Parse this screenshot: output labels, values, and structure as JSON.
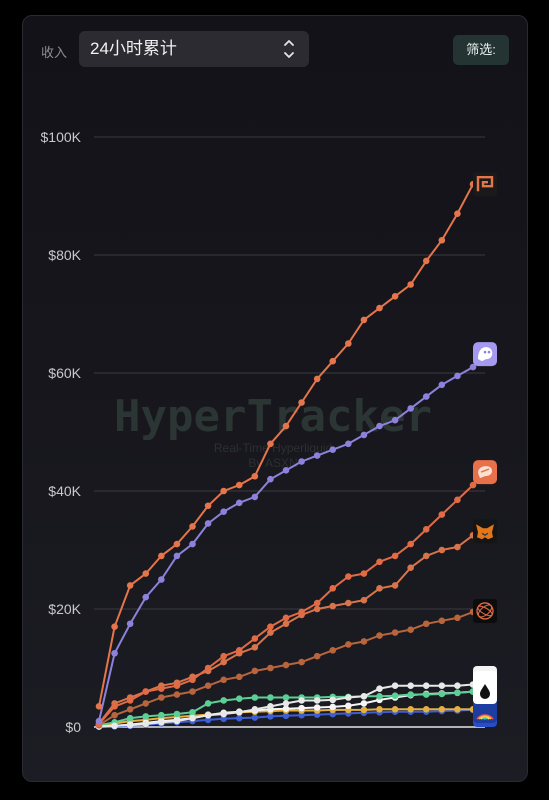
{
  "header": {
    "metric_label": "收入",
    "select_value": "24小时累计",
    "filter_label": "筛选:"
  },
  "watermark": {
    "title": "HyperTracker",
    "subtitle": "Real-Time Hyperliquid",
    "subtitle2": "By ASXN"
  },
  "chart_data": {
    "type": "line",
    "title": "",
    "xlabel": "",
    "ylabel": "",
    "ylim": [
      0,
      100000
    ],
    "y_ticks": [
      0,
      20000,
      40000,
      60000,
      80000,
      100000
    ],
    "y_tick_labels": [
      "$0",
      "$20K",
      "$40K",
      "$60K",
      "$80K",
      "$100K"
    ],
    "grid": true,
    "legend": "icons at line ends",
    "x": [
      0,
      1,
      2,
      3,
      4,
      5,
      6,
      7,
      8,
      9,
      10,
      11,
      12,
      13,
      14,
      15,
      16,
      17,
      18,
      19,
      20,
      21,
      22,
      23,
      24
    ],
    "series": [
      {
        "color": "#e5754a",
        "icon": "maze-logo-icon",
        "values": [
          3500,
          17000,
          24000,
          26000,
          29000,
          31000,
          34000,
          37500,
          40000,
          41000,
          42500,
          48000,
          51000,
          55000,
          59000,
          62000,
          65000,
          69000,
          71000,
          73000,
          75000,
          79000,
          82500,
          87000,
          92000
        ]
      },
      {
        "color": "#8c82db",
        "icon": "ghost-logo-icon",
        "values": [
          1000,
          12500,
          17500,
          22000,
          25000,
          29000,
          31000,
          34500,
          36500,
          38000,
          39000,
          42000,
          43500,
          45000,
          46000,
          47000,
          48000,
          49500,
          51000,
          52000,
          54000,
          56000,
          58000,
          59500,
          61000
        ]
      },
      {
        "color": "#e06b45",
        "icon": "chat-bubble-logo-icon",
        "values": [
          500,
          3500,
          4500,
          6000,
          6500,
          7000,
          8000,
          10000,
          12000,
          13000,
          15000,
          17000,
          18500,
          19500,
          21000,
          23500,
          25500,
          26000,
          28000,
          29000,
          31000,
          33500,
          36000,
          38500,
          41000
        ]
      },
      {
        "color": "#d9744a",
        "icon": "fox-logo-icon",
        "values": [
          600,
          4000,
          5000,
          6000,
          7000,
          7500,
          8500,
          9500,
          11000,
          12500,
          13500,
          16000,
          17500,
          19000,
          20000,
          20500,
          21000,
          21500,
          23500,
          24000,
          27000,
          29000,
          30000,
          30500,
          32500
        ]
      },
      {
        "color": "#b8653d",
        "icon": "spiral-logo-icon",
        "values": [
          300,
          2000,
          3000,
          4000,
          5000,
          5500,
          6000,
          7000,
          8000,
          8500,
          9500,
          10000,
          10500,
          11000,
          12000,
          13000,
          14000,
          14500,
          15500,
          16000,
          16500,
          17500,
          18000,
          18500,
          19500
        ]
      },
      {
        "color": "#e8e8e8",
        "icon": "box-logo-icon",
        "values": [
          100,
          200,
          300,
          500,
          800,
          1000,
          1500,
          2000,
          2200,
          2500,
          3000,
          3500,
          4000,
          4500,
          4500,
          4600,
          5000,
          5200,
          6500,
          7000,
          7000,
          7000,
          7000,
          7000,
          7200
        ]
      },
      {
        "color": "#5ccf95",
        "icon": "drop-logo-icon",
        "values": [
          300,
          800,
          1500,
          1800,
          2000,
          2200,
          2500,
          4000,
          4500,
          4800,
          5000,
          5000,
          5000,
          5000,
          5000,
          5100,
          5100,
          5200,
          5200,
          5300,
          5500,
          5500,
          5600,
          5800,
          6000
        ]
      },
      {
        "color": "#f5f5f5",
        "icon": "bird-logo-icon",
        "values": [
          100,
          200,
          400,
          700,
          1000,
          1200,
          1500,
          2000,
          2400,
          2600,
          2800,
          3000,
          3100,
          3200,
          3300,
          3400,
          3600,
          4000,
          4600,
          5000,
          5400,
          5600,
          5700,
          5800,
          6000
        ]
      },
      {
        "color": "#e5b040",
        "icon": "rainbow-logo-icon",
        "values": [
          200,
          600,
          1000,
          1200,
          1500,
          1700,
          1900,
          2100,
          2300,
          2500,
          2600,
          2700,
          2800,
          2800,
          2800,
          2900,
          2900,
          2900,
          3000,
          3000,
          3000,
          3000,
          3000,
          3000,
          3000
        ]
      },
      {
        "color": "#3d5fd6",
        "icon": "blue-logo-icon",
        "values": [
          50,
          100,
          200,
          400,
          600,
          800,
          1000,
          1200,
          1400,
          1500,
          1600,
          1800,
          1900,
          2000,
          2100,
          2200,
          2300,
          2400,
          2500,
          2600,
          2600,
          2600,
          2700,
          2800,
          2900
        ]
      }
    ]
  }
}
